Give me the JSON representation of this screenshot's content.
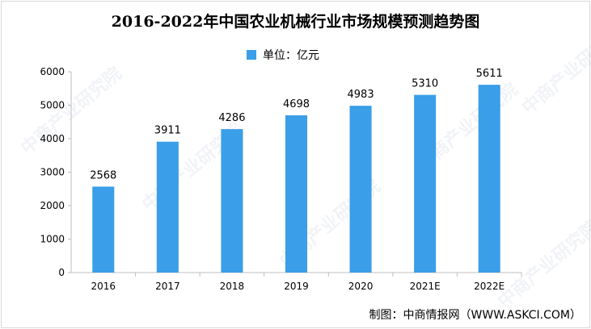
{
  "title": "2016-2022年中国农业机械行业市场规模预测趋势图",
  "legend_label": "单位：亿元",
  "credit": "制图：中商情报网（WWW.ASKCI.COM）",
  "watermark": "中商产业研究院",
  "colors": {
    "bar": "#3a9ee8",
    "axis": "#bfbfbf"
  },
  "chart_data": {
    "type": "bar",
    "categories": [
      "2016",
      "2017",
      "2018",
      "2019",
      "2020",
      "2021E",
      "2022E"
    ],
    "values": [
      2568,
      3911,
      4286,
      4698,
      4983,
      5310,
      5611
    ],
    "ylim": [
      0,
      6000
    ],
    "yticks": [
      0,
      1000,
      2000,
      3000,
      4000,
      5000,
      6000
    ],
    "grid": false,
    "legend": "top-center"
  }
}
